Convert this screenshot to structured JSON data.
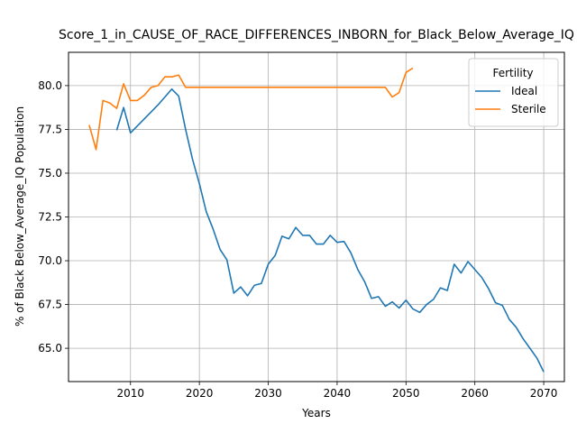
{
  "chart_data": {
    "type": "line",
    "title": "Score_1_in_CAUSE_OF_RACE_DIFFERENCES_INBORN_for_Black_Below_Average_IQ",
    "xlabel": "Years",
    "ylabel": "% of Black Below_Average_IQ Population",
    "xlim": [
      2001,
      2073
    ],
    "ylim": [
      63.1,
      81.9
    ],
    "xticks": [
      2010,
      2020,
      2030,
      2040,
      2050,
      2060,
      2070
    ],
    "yticks": [
      65.0,
      67.5,
      70.0,
      72.5,
      75.0,
      77.5,
      80.0
    ],
    "ytick_labels": [
      "65.0",
      "67.5",
      "70.0",
      "72.5",
      "75.0",
      "77.5",
      "80.0"
    ],
    "grid": true,
    "legend": {
      "title": "Fertility",
      "placement": "top-right"
    },
    "series": [
      {
        "name": "Ideal",
        "color": "#1f77b4",
        "x": [
          2008,
          2009,
          2010,
          2011,
          2012,
          2013,
          2014,
          2015,
          2016,
          2017,
          2018,
          2019,
          2020,
          2021,
          2022,
          2023,
          2024,
          2025,
          2026,
          2027,
          2028,
          2029,
          2030,
          2031,
          2032,
          2033,
          2034,
          2035,
          2036,
          2037,
          2038,
          2039,
          2040,
          2041,
          2042,
          2043,
          2044,
          2045,
          2046,
          2047,
          2048,
          2049,
          2050,
          2051,
          2052,
          2053,
          2054,
          2055,
          2056,
          2057,
          2058,
          2059,
          2060,
          2061,
          2062,
          2063,
          2064,
          2065,
          2066,
          2067,
          2068,
          2069,
          2070
        ],
        "values": [
          77.45,
          78.75,
          77.3,
          77.7,
          78.1,
          78.5,
          78.9,
          79.35,
          79.8,
          79.4,
          77.5,
          75.8,
          74.4,
          72.8,
          71.8,
          70.65,
          70.05,
          68.15,
          68.5,
          68.0,
          68.6,
          68.7,
          69.8,
          70.3,
          71.4,
          71.25,
          71.9,
          71.45,
          71.45,
          70.95,
          70.95,
          71.45,
          71.05,
          71.1,
          70.45,
          69.5,
          68.8,
          67.85,
          67.95,
          67.4,
          67.65,
          67.3,
          67.75,
          67.25,
          67.05,
          67.5,
          67.8,
          68.45,
          68.3,
          69.8,
          69.3,
          69.95,
          69.5,
          69.05,
          68.4,
          67.6,
          67.45,
          66.65,
          66.2,
          65.55,
          65.0,
          64.45,
          63.65
        ]
      },
      {
        "name": "Sterile",
        "color": "#ff7f0e",
        "x": [
          2004,
          2005,
          2006,
          2007,
          2008,
          2009,
          2010,
          2011,
          2012,
          2013,
          2014,
          2015,
          2016,
          2017,
          2018,
          2019,
          2020,
          2021,
          2022,
          2023,
          2024,
          2025,
          2026,
          2027,
          2028,
          2029,
          2030,
          2031,
          2032,
          2033,
          2034,
          2035,
          2036,
          2037,
          2038,
          2039,
          2040,
          2041,
          2042,
          2043,
          2044,
          2045,
          2046,
          2047,
          2048,
          2049,
          2050,
          2051
        ],
        "values": [
          77.75,
          76.35,
          79.15,
          79.0,
          78.7,
          80.1,
          79.15,
          79.15,
          79.45,
          79.9,
          80.0,
          80.5,
          80.5,
          80.6,
          79.9,
          79.9,
          79.9,
          79.9,
          79.9,
          79.9,
          79.9,
          79.9,
          79.9,
          79.9,
          79.9,
          79.9,
          79.9,
          79.9,
          79.9,
          79.9,
          79.9,
          79.9,
          79.9,
          79.9,
          79.9,
          79.9,
          79.9,
          79.9,
          79.9,
          79.9,
          79.9,
          79.9,
          79.9,
          79.9,
          79.35,
          79.6,
          80.75,
          81.0
        ]
      }
    ]
  }
}
